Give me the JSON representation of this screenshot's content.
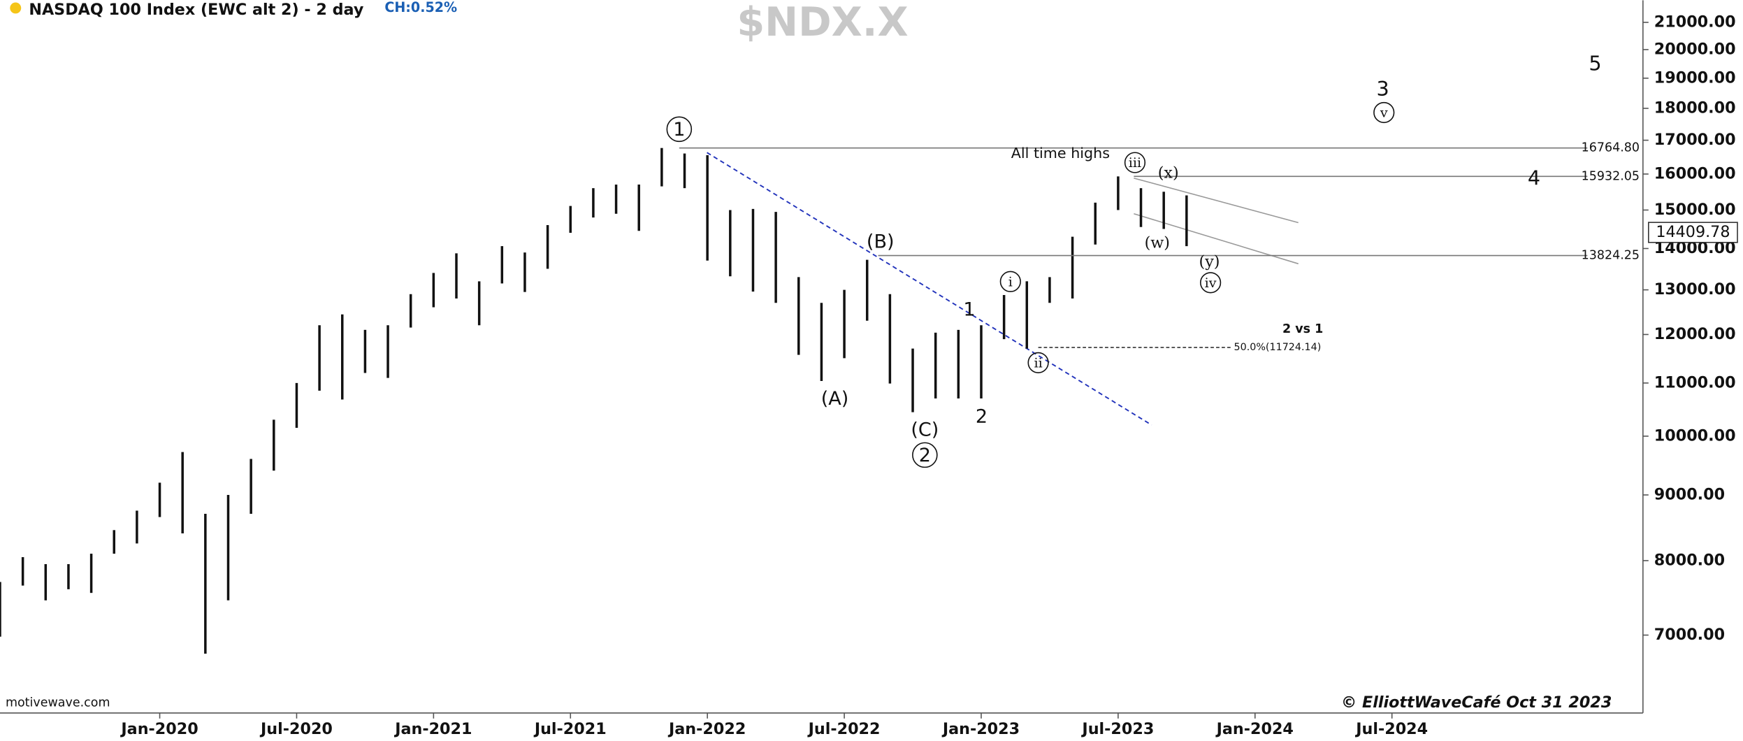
{
  "chart_data": {
    "type": "range-bar",
    "title": "NASDAQ 100 Index (EWC alt 2) - 2 day",
    "change": "CH:0.52%",
    "symbol": "$NDX.X",
    "source": "motivewave.com",
    "credit": "© ElliottWaveCafé Oct 31 2023",
    "log_scale": true,
    "grid": false,
    "color": "#111111",
    "x": [
      "2019-06",
      "2019-07",
      "2019-08",
      "2019-09",
      "2019-10",
      "2019-11",
      "2019-12",
      "2020-01",
      "2020-02",
      "2020-03",
      "2020-04",
      "2020-05",
      "2020-06",
      "2020-07",
      "2020-08",
      "2020-09",
      "2020-10",
      "2020-11",
      "2020-12",
      "2021-01",
      "2021-02",
      "2021-03",
      "2021-04",
      "2021-05",
      "2021-06",
      "2021-07",
      "2021-08",
      "2021-09",
      "2021-10",
      "2021-11",
      "2021-12",
      "2022-01",
      "2022-02",
      "2022-03",
      "2022-04",
      "2022-05",
      "2022-06",
      "2022-07",
      "2022-08",
      "2022-09",
      "2022-10",
      "2022-11",
      "2022-12",
      "2023-01",
      "2023-02",
      "2023-03",
      "2023-04",
      "2023-05",
      "2023-06",
      "2023-07",
      "2023-08",
      "2023-09",
      "2023-10"
    ],
    "low": [
      6980,
      7650,
      7450,
      7600,
      7550,
      8100,
      8250,
      8650,
      8400,
      6770,
      7450,
      8700,
      9400,
      10150,
      10850,
      10680,
      11200,
      11100,
      12150,
      12600,
      12800,
      12200,
      13150,
      12950,
      13500,
      14400,
      14800,
      14900,
      14450,
      15650,
      15600,
      13700,
      13320,
      12960,
      12700,
      11570,
      11040,
      11500,
      12300,
      10990,
      10440,
      10700,
      10700,
      10700,
      11900,
      11700,
      12700,
      12800,
      14100,
      15000,
      14550,
      14500,
      14060
    ],
    "high": [
      7700,
      8050,
      7950,
      7950,
      8100,
      8450,
      8750,
      9200,
      9720,
      8700,
      9000,
      9600,
      10300,
      11000,
      12200,
      12440,
      12100,
      12200,
      12900,
      13400,
      13880,
      13200,
      14060,
      13900,
      14600,
      15110,
      15600,
      15700,
      15700,
      16765,
      16600,
      16550,
      15000,
      15030,
      14950,
      13300,
      12700,
      13000,
      13720,
      12900,
      11700,
      12040,
      12100,
      12200,
      12880,
      13200,
      13300,
      14300,
      15200,
      15932,
      15600,
      15500,
      15400
    ],
    "xlim": [
      "2019-06",
      "2025-06"
    ],
    "xticks": [
      {
        "value": "2020-01",
        "label": "Jan-2020"
      },
      {
        "value": "2020-07",
        "label": "Jul-2020"
      },
      {
        "value": "2021-01",
        "label": "Jan-2021"
      },
      {
        "value": "2021-07",
        "label": "Jul-2021"
      },
      {
        "value": "2022-01",
        "label": "Jan-2022"
      },
      {
        "value": "2022-07",
        "label": "Jul-2022"
      },
      {
        "value": "2023-01",
        "label": "Jan-2023"
      },
      {
        "value": "2023-07",
        "label": "Jul-2023"
      },
      {
        "value": "2024-01",
        "label": "Jan-2024"
      },
      {
        "value": "2024-07",
        "label": "Jul-2024"
      }
    ],
    "ylim": [
      6100,
      21850
    ],
    "yticks": [
      {
        "value": 7000,
        "label": "7000.00"
      },
      {
        "value": 8000,
        "label": "8000.00"
      },
      {
        "value": 9000,
        "label": "9000.00"
      },
      {
        "value": 10000,
        "label": "10000.00"
      },
      {
        "value": 11000,
        "label": "11000.00"
      },
      {
        "value": 12000,
        "label": "12000.00"
      },
      {
        "value": 13000,
        "label": "13000.00"
      },
      {
        "value": 14000,
        "label": "14000.00"
      },
      {
        "value": 15000,
        "label": "15000.00"
      },
      {
        "value": 16000,
        "label": "16000.00"
      },
      {
        "value": 17000,
        "label": "17000.00"
      },
      {
        "value": 18000,
        "label": "18000.00"
      },
      {
        "value": 19000,
        "label": "19000.00"
      },
      {
        "value": 20000,
        "label": "20000.00"
      },
      {
        "value": 21000,
        "label": "21000.00"
      }
    ],
    "levels": [
      {
        "value": 16764.8,
        "label": "16764.80"
      },
      {
        "value": 15932.05,
        "label": "15932.05"
      },
      {
        "value": 13824.25,
        "label": "13824.25"
      }
    ],
    "fib_level": {
      "value": 11724.14,
      "label": "50.0%(11724.14)"
    },
    "last_price": {
      "value": 14409.78,
      "label": "14409.78"
    },
    "annotations": [
      "All time highs",
      "2 vs 1",
      "1",
      "2",
      "(A)",
      "(B)",
      "(C)",
      "1",
      "2",
      "i",
      "ii",
      "iii",
      "iv",
      "v",
      "(w)",
      "(x)",
      "(y)",
      "3",
      "4",
      "5"
    ]
  }
}
